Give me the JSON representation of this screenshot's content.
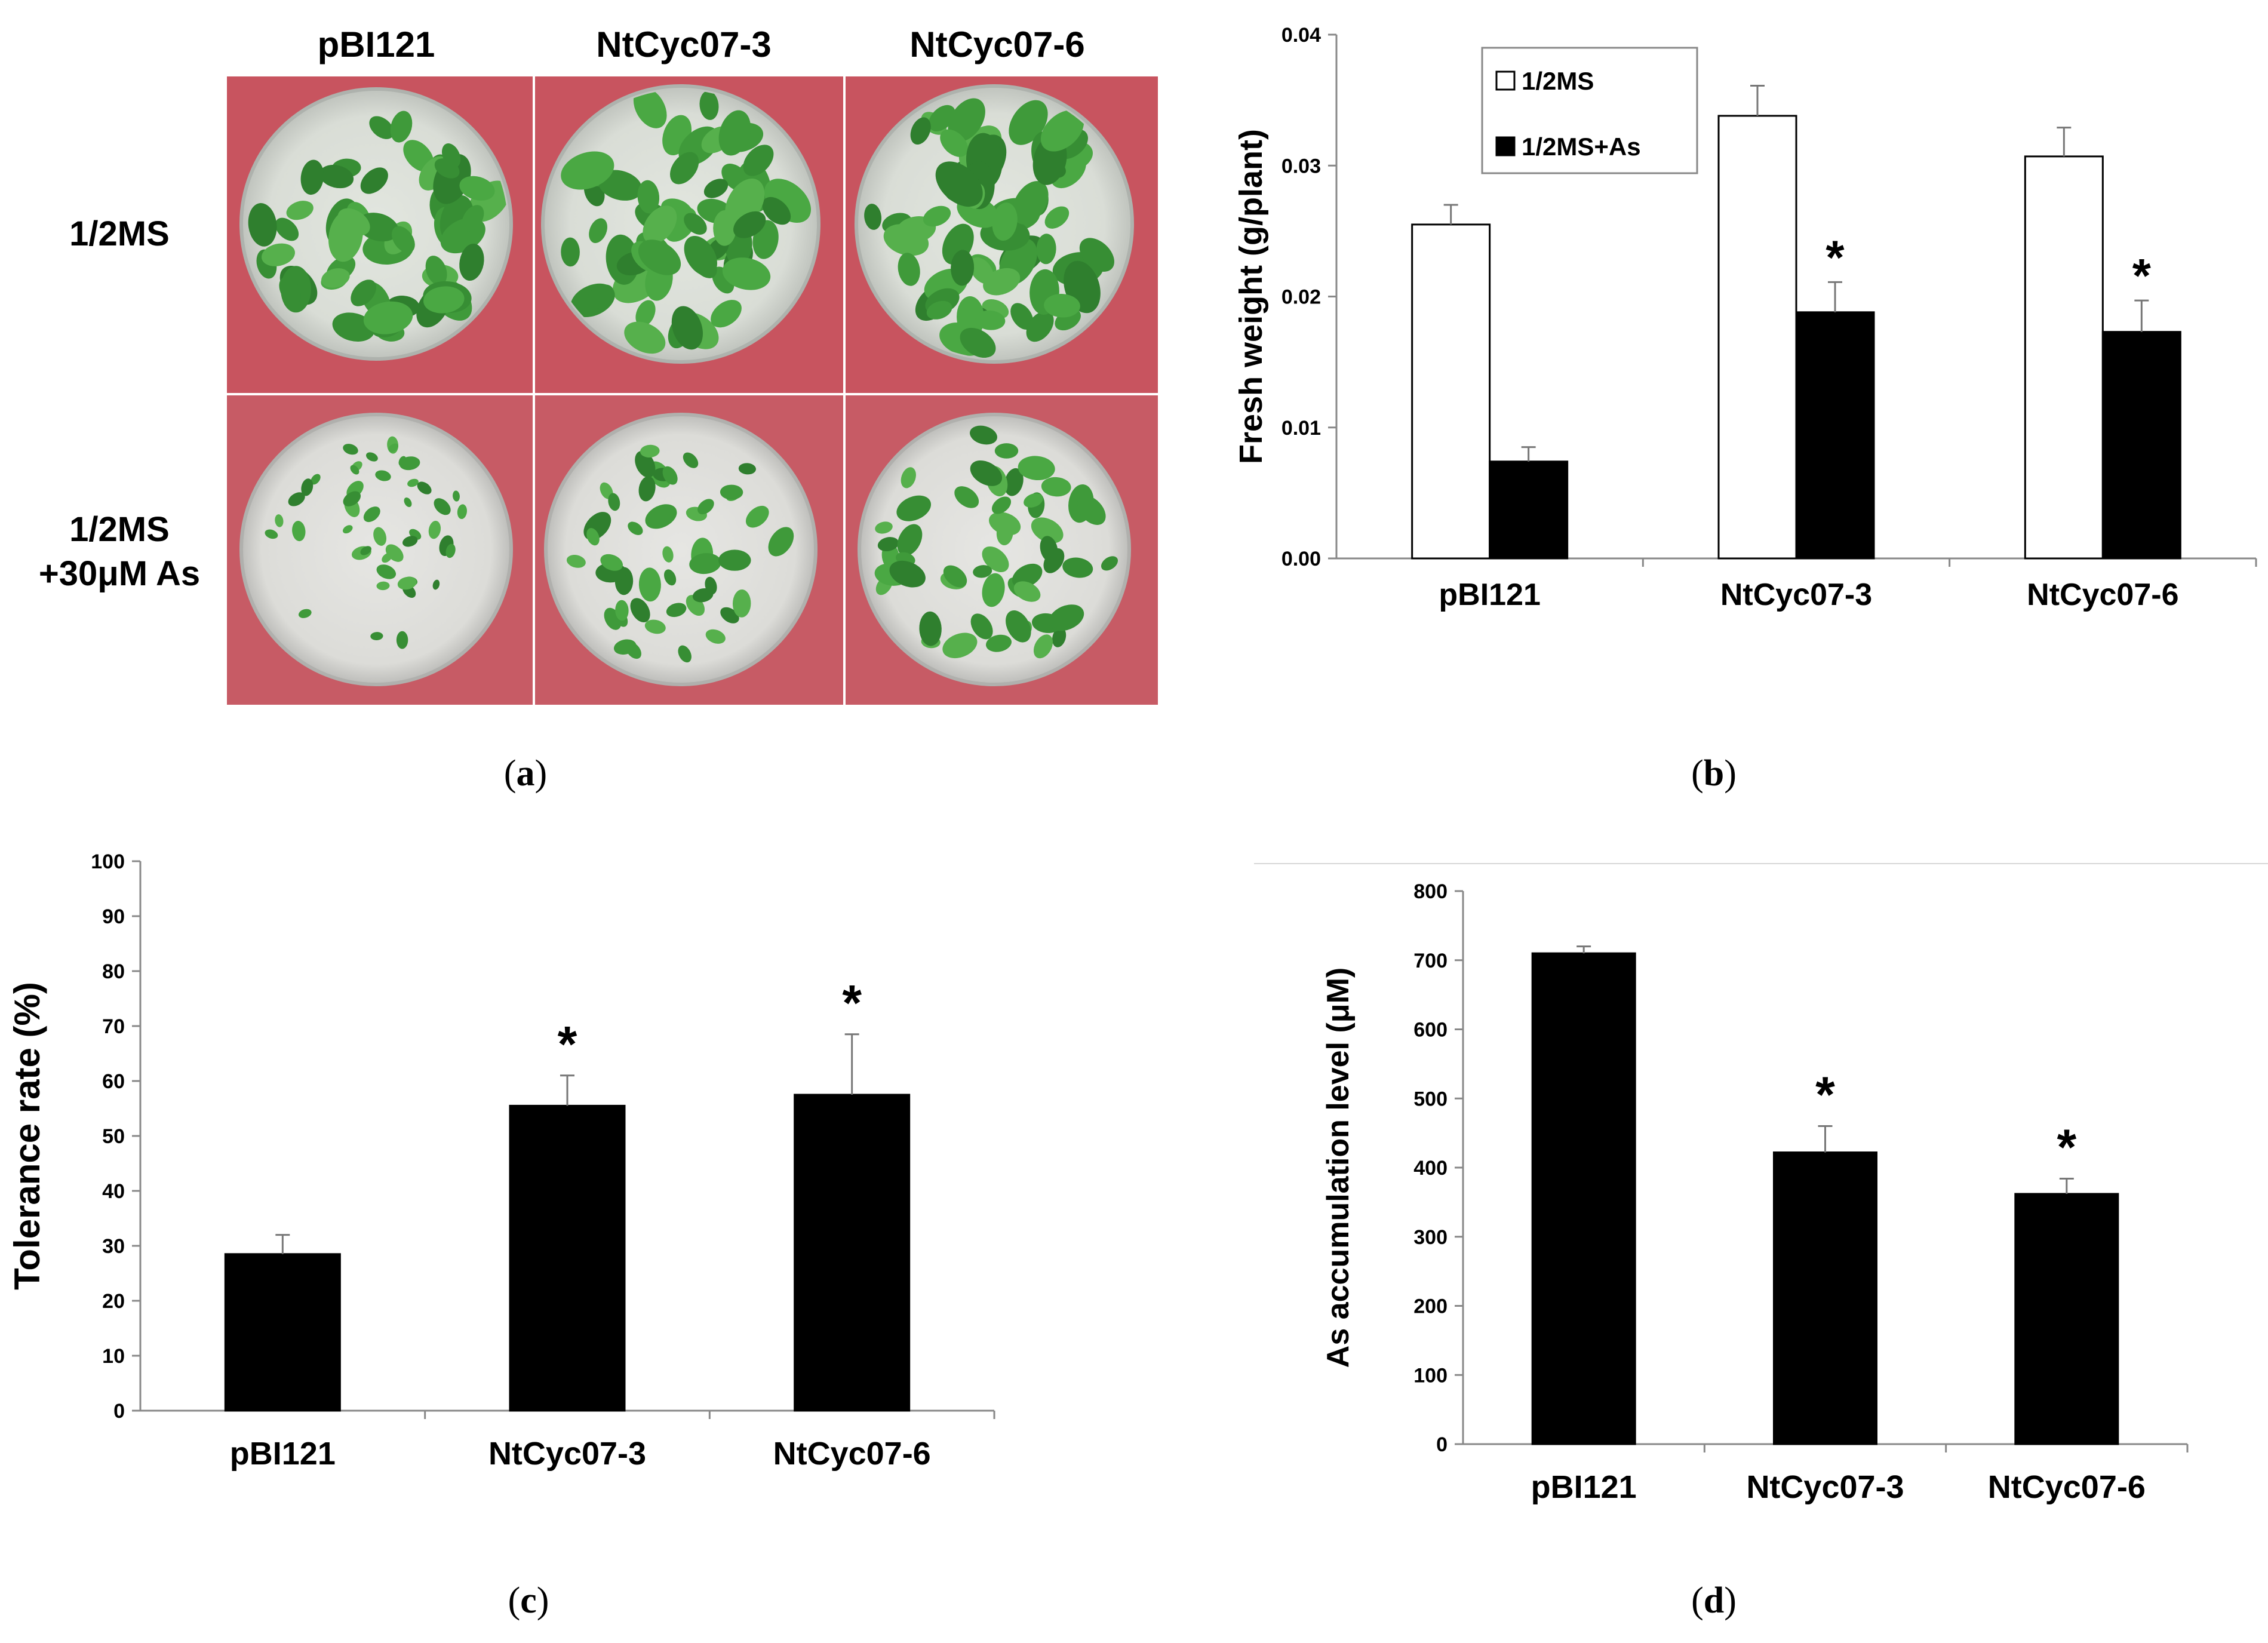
{
  "panel_labels": [
    "a",
    "b",
    "c",
    "d"
  ],
  "photo": {
    "columns": [
      "pBI121",
      "NtCyc07-3",
      "NtCyc07-6"
    ],
    "rows": [
      "1/2MS",
      "1/2MS\n+30μM As"
    ]
  },
  "chart_data": [
    {
      "id": "b",
      "type": "bar",
      "categories": [
        "pBI121",
        "NtCyc07-3",
        "NtCyc07-6"
      ],
      "ylabel": "Fresh weight (g/plant)",
      "xlabel": "",
      "ylim": [
        0,
        0.04
      ],
      "yticks": [
        "0.00",
        "0.01",
        "0.02",
        "0.03",
        "0.04"
      ],
      "legend_position": "top-left",
      "series": [
        {
          "name": "1/2MS",
          "color": "#ffffff",
          "values": [
            0.0255,
            0.0338,
            0.0307
          ],
          "errors": [
            0.0015,
            0.0023,
            0.0022
          ]
        },
        {
          "name": "1/2MS+As",
          "color": "#000000",
          "values": [
            0.0074,
            0.0188,
            0.0173
          ],
          "errors": [
            0.0011,
            0.0023,
            0.0024
          ]
        }
      ],
      "significance": [
        {
          "series": 1,
          "category": 1,
          "mark": "*"
        },
        {
          "series": 1,
          "category": 2,
          "mark": "*"
        }
      ]
    },
    {
      "id": "c",
      "type": "bar",
      "categories": [
        "pBI121",
        "NtCyc07-3",
        "NtCyc07-6"
      ],
      "ylabel": "Tolerance rate (%)",
      "xlabel": "",
      "ylim": [
        0,
        100
      ],
      "yticks": [
        "0",
        "10",
        "20",
        "30",
        "40",
        "50",
        "60",
        "70",
        "80",
        "90",
        "100"
      ],
      "series": [
        {
          "values": [
            28.5,
            55.5,
            57.5
          ],
          "errors": [
            3.5,
            5.5,
            11
          ],
          "color": "#000000"
        }
      ],
      "significance": [
        {
          "series": 0,
          "category": 1,
          "mark": "*"
        },
        {
          "series": 0,
          "category": 2,
          "mark": "*"
        }
      ]
    },
    {
      "id": "d",
      "type": "bar",
      "categories": [
        "pBI121",
        "NtCyc07-3",
        "NtCyc07-6"
      ],
      "ylabel": "As accumulation  level (μM)",
      "xlabel": "",
      "ylim": [
        0,
        800
      ],
      "yticks": [
        "0",
        "100",
        "200",
        "300",
        "400",
        "500",
        "600",
        "700",
        "800"
      ],
      "series": [
        {
          "values": [
            710,
            422,
            362
          ],
          "errors": [
            10,
            38,
            22
          ],
          "color": "#000000"
        }
      ],
      "significance": [
        {
          "series": 0,
          "category": 1,
          "mark": "*"
        },
        {
          "series": 0,
          "category": 2,
          "mark": "*"
        }
      ]
    }
  ]
}
